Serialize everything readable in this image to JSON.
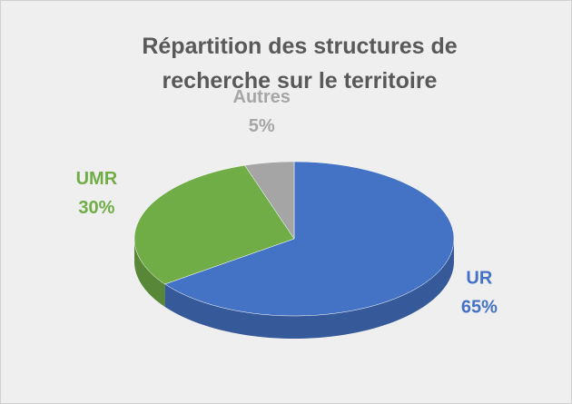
{
  "chart_data": {
    "type": "pie",
    "title": "Répartition des structures de recherche sur le territoire",
    "categories": [
      "UR",
      "UMR",
      "Autres"
    ],
    "values": [
      65,
      30,
      5
    ],
    "value_labels": [
      "65%",
      "30%",
      "5%"
    ],
    "colors": [
      "#4472c4",
      "#70ad47",
      "#a5a5a5"
    ]
  }
}
